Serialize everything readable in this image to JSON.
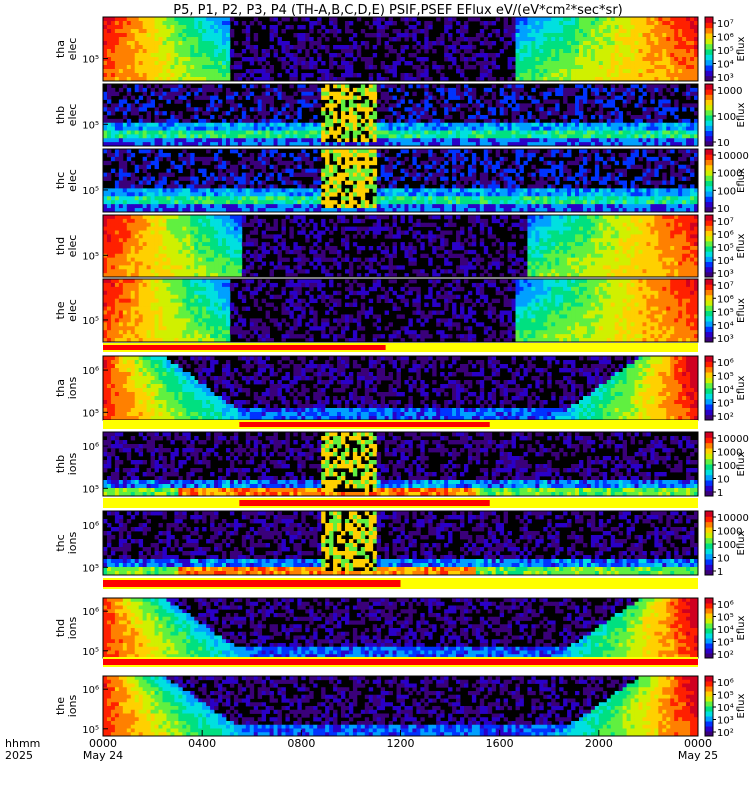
{
  "title": "P5, P1, P2, P3, P4 (TH-A,B,C,D,E) PSIF,PSEF EFlux eV/(eV*cm²*sec*sr)",
  "chart_data": {
    "type": "heatmap",
    "x_ticks": [
      "0000",
      "0400",
      "0800",
      "1200",
      "1600",
      "2000",
      "0000"
    ],
    "x_tick_hours": [
      0,
      4,
      8,
      12,
      16,
      20,
      24
    ],
    "date_labels": [
      {
        "text": "May 24",
        "hour": 0
      },
      {
        "text": "May 25",
        "hour": 24
      }
    ],
    "x_axis_labels": [
      "hhmm",
      "2025"
    ],
    "xlim_hours": [
      0,
      24
    ],
    "colorbar_label": "Eflux",
    "panels": [
      {
        "probe": "tha",
        "species": "elec",
        "ytick": "10⁵",
        "cbar_ticks": [
          "10⁷",
          "10⁶",
          "10⁵",
          "10⁴",
          "10³"
        ],
        "pattern": "elec_day",
        "gap_start_hour": 5.0,
        "gap_end_hour": 16.6
      },
      {
        "probe": "thb",
        "species": "elec",
        "ytick": "10⁵",
        "cbar_ticks": [
          "1000",
          "100",
          "10"
        ],
        "pattern": "elec_band",
        "burst_start_hour": 8.7,
        "burst_end_hour": 11.0
      },
      {
        "probe": "thc",
        "species": "elec",
        "ytick": "10⁵",
        "cbar_ticks": [
          "10000",
          "1000",
          "100",
          "10"
        ],
        "pattern": "elec_band",
        "burst_start_hour": 8.7,
        "burst_end_hour": 11.0
      },
      {
        "probe": "thd",
        "species": "elec",
        "ytick": "10⁵",
        "cbar_ticks": [
          "10⁷",
          "10⁶",
          "10⁵",
          "10⁴",
          "10³"
        ],
        "pattern": "elec_day",
        "gap_start_hour": 5.5,
        "gap_end_hour": 17.0
      },
      {
        "probe": "the",
        "species": "elec",
        "ytick": "10⁵",
        "cbar_ticks": [
          "10⁷",
          "10⁶",
          "10⁵",
          "10⁴",
          "10³"
        ],
        "pattern": "elec_day",
        "gap_start_hour": 5.0,
        "gap_end_hour": 16.6
      },
      {
        "probe": "tha",
        "species": "ions",
        "ytick": [
          "10⁶",
          "10⁵"
        ],
        "cbar_ticks": [
          "10⁶",
          "10⁵",
          "10⁴",
          "10³",
          "10²"
        ],
        "pattern": "ion_day",
        "mode_bar_red_end_hour": 11.4
      },
      {
        "probe": "thb",
        "species": "ions",
        "ytick": [
          "10⁶",
          "10⁵"
        ],
        "cbar_ticks": [
          "10000",
          "1000",
          "100",
          "10",
          "1"
        ],
        "pattern": "ion_band",
        "burst_start_hour": 8.7,
        "burst_end_hour": 11.0,
        "mode_bar_red_start_hour": 5.5,
        "mode_bar_red_end_hour": 15.6
      },
      {
        "probe": "thc",
        "species": "ions",
        "ytick": [
          "10⁶",
          "10⁵"
        ],
        "cbar_ticks": [
          "10000",
          "1000",
          "100",
          "10",
          "1"
        ],
        "pattern": "ion_band",
        "burst_start_hour": 8.7,
        "burst_end_hour": 11.0,
        "mode_bar_red_start_hour": 5.5,
        "mode_bar_red_end_hour": 15.6
      },
      {
        "probe": "thd",
        "species": "ions",
        "ytick": [
          "10⁶",
          "10⁵"
        ],
        "cbar_ticks": [
          "10⁶",
          "10⁵",
          "10⁴",
          "10³",
          "10²"
        ],
        "pattern": "ion_day",
        "mode_bar_red_end_hour": 12.0
      },
      {
        "probe": "the",
        "species": "ions",
        "ytick": [
          "10⁶",
          "10⁵"
        ],
        "cbar_ticks": [
          "10⁶",
          "10⁵",
          "10⁴",
          "10³",
          "10²"
        ],
        "pattern": "ion_day",
        "mode_bar_red_end_hour": 24.0
      }
    ],
    "colormap": [
      "#3a007a",
      "#2a00c8",
      "#0033ff",
      "#00a0ff",
      "#00e0e0",
      "#00e080",
      "#60f040",
      "#d0f000",
      "#ffd000",
      "#ff8000",
      "#ff2000",
      "#d00020"
    ]
  }
}
